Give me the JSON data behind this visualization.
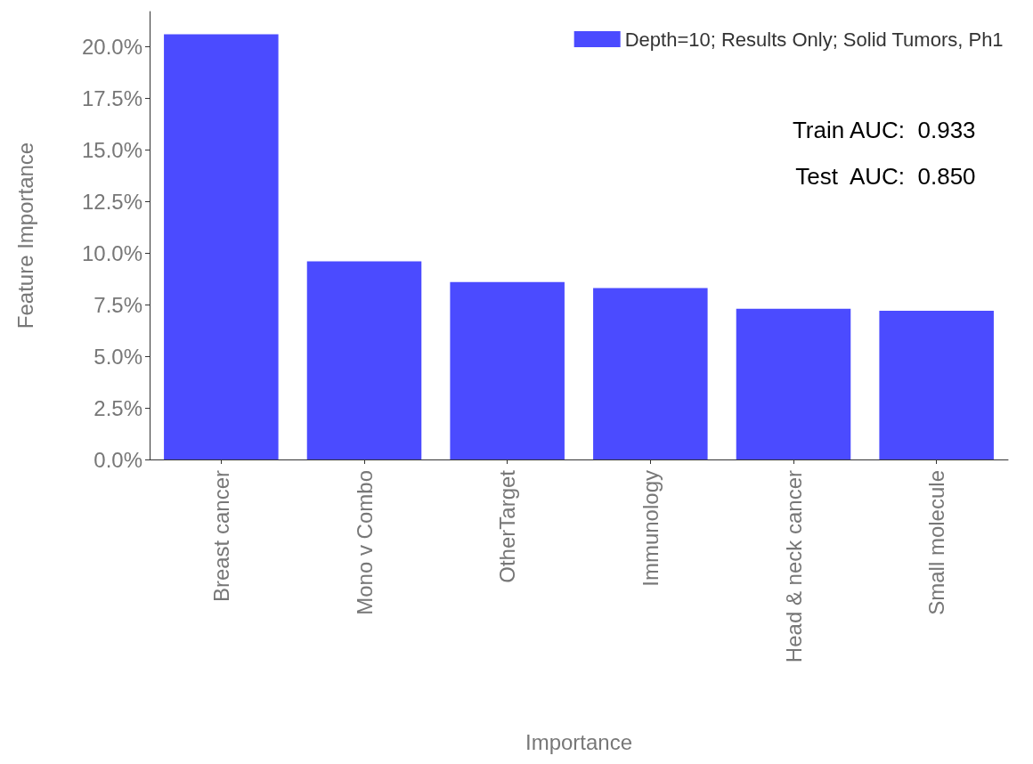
{
  "chart_data": {
    "type": "bar",
    "xlabel": "Importance",
    "ylabel": "Feature Importance",
    "categories": [
      "Breast cancer",
      "Mono v Combo",
      "OtherTarget",
      "Immunology",
      "Head & neck cancer",
      "Small molecule"
    ],
    "series": [
      {
        "name": "Depth=10; Results Only; Solid Tumors, Ph1",
        "color": "#4b4bff",
        "values": [
          20.6,
          9.6,
          8.6,
          8.3,
          7.3,
          7.2
        ]
      }
    ],
    "ylim": [
      0,
      21.7
    ],
    "yticks": [
      {
        "value": 0,
        "label": "0.0%"
      },
      {
        "value": 2.5,
        "label": "2.5%"
      },
      {
        "value": 5,
        "label": "5.0%"
      },
      {
        "value": 7.5,
        "label": "7.5%"
      },
      {
        "value": 10,
        "label": "10.0%"
      },
      {
        "value": 12.5,
        "label": "12.5%"
      },
      {
        "value": 15,
        "label": "15.0%"
      },
      {
        "value": 17.5,
        "label": "17.5%"
      },
      {
        "value": 20,
        "label": "20.0%"
      }
    ],
    "grid": false,
    "legend": "top right",
    "annotations": [
      "Train AUC:  0.933",
      "Test  AUC:  0.850"
    ]
  }
}
